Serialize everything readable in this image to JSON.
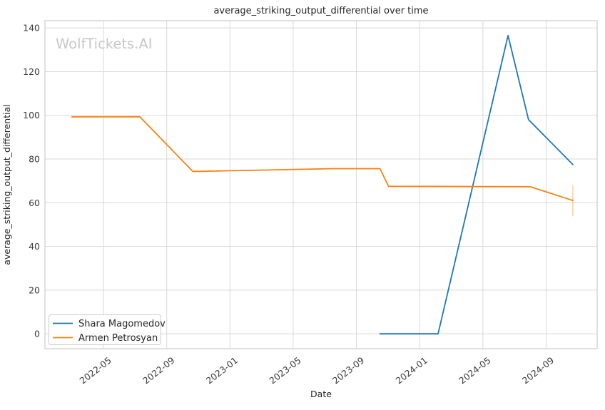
{
  "watermark": "WolfTickets.AI",
  "chart_data": {
    "type": "line",
    "title": "average_striking_output_differential over time",
    "xlabel": "Date",
    "ylabel": "average_striking_output_differential",
    "grid": true,
    "legend_position": "lower left",
    "x_ticks": [
      "2022-05",
      "2022-09",
      "2023-01",
      "2023-05",
      "2023-09",
      "2024-01",
      "2024-05",
      "2024-09"
    ],
    "y_ticks": [
      0,
      20,
      40,
      60,
      80,
      100,
      120,
      140
    ],
    "xlim": [
      "2022-01-10",
      "2024-12-08"
    ],
    "ylim": [
      -6.8,
      143.3
    ],
    "colors": {
      "grid": "#d9d9d9",
      "plot_border": "#cccccc",
      "text": "#262626",
      "watermark": "#c8c8c8"
    },
    "series": [
      {
        "name": "Shara Magomedov",
        "color": "#1f77b4",
        "points": [
          [
            "2023-10-16",
            0
          ],
          [
            "2024-02-06",
            0
          ],
          [
            "2024-06-19",
            136.5
          ],
          [
            "2024-07-28",
            98
          ],
          [
            "2024-10-22",
            77.5
          ]
        ],
        "error_bars": []
      },
      {
        "name": "Armen Petrosyan",
        "color": "#ff7f0e",
        "points": [
          [
            "2022-03-01",
            99.3
          ],
          [
            "2022-07-10",
            99.3
          ],
          [
            "2022-10-21",
            74.3
          ],
          [
            "2023-07-20",
            75.6
          ],
          [
            "2023-10-16",
            75.6
          ],
          [
            "2023-11-02",
            67.5
          ],
          [
            "2024-08-01",
            67.3
          ],
          [
            "2024-10-22",
            61
          ]
        ],
        "error_bars": [
          {
            "x": "2024-10-22",
            "y_min": 54,
            "y_max": 68
          }
        ]
      }
    ]
  }
}
